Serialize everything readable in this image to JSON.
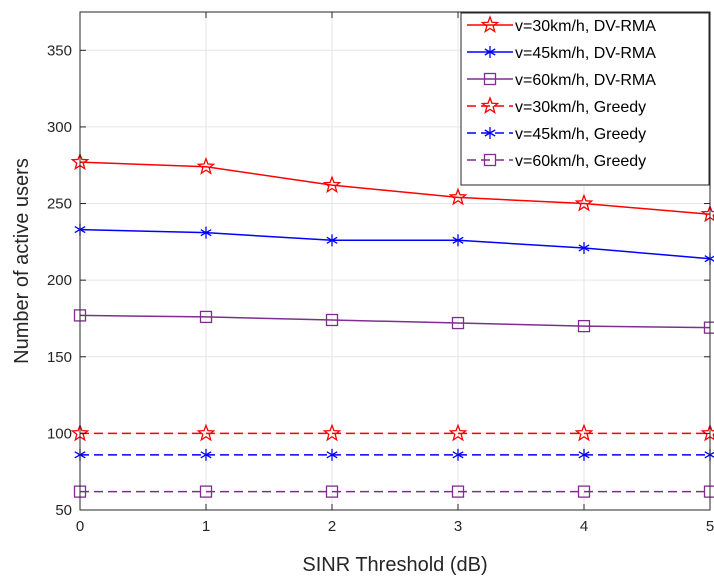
{
  "chart_data": {
    "type": "line",
    "title": "",
    "xlabel": "SINR Threshold (dB)",
    "ylabel": "Number of active users",
    "xlim": [
      0,
      5
    ],
    "ylim": [
      50,
      375
    ],
    "x_ticks": [
      "0",
      "1",
      "2",
      "3",
      "4",
      "5"
    ],
    "y_ticks": [
      "50",
      "100",
      "150",
      "200",
      "250",
      "300",
      "350"
    ],
    "grid": true,
    "legend_position": "top-right",
    "x": [
      0,
      1,
      2,
      3,
      4,
      5
    ],
    "series": [
      {
        "name": "v=30km/h, DV-RMA",
        "color": "#ff0000",
        "marker": "pentagram",
        "linestyle": "solid",
        "values": [
          277,
          274,
          262,
          254,
          250,
          243
        ]
      },
      {
        "name": "v=45km/h, DV-RMA",
        "color": "#0000ff",
        "marker": "asterisk",
        "linestyle": "solid",
        "values": [
          233,
          231,
          226,
          226,
          221,
          214
        ]
      },
      {
        "name": "v=60km/h, DV-RMA",
        "color": "#7e2f8e",
        "marker": "square",
        "linestyle": "solid",
        "values": [
          177,
          176,
          174,
          172,
          170,
          169
        ]
      },
      {
        "name": "v=30km/h, Greedy",
        "color": "#ff0000",
        "marker": "pentagram",
        "linestyle": "dashed",
        "values": [
          100,
          100,
          100,
          100,
          100,
          100
        ]
      },
      {
        "name": "v=45km/h, Greedy",
        "color": "#0000ff",
        "marker": "asterisk",
        "linestyle": "dashed",
        "values": [
          86,
          86,
          86,
          86,
          86,
          86
        ]
      },
      {
        "name": "v=60km/h, Greedy",
        "color": "#7e2f8e",
        "marker": "square",
        "linestyle": "dashed",
        "values": [
          62,
          62,
          62,
          62,
          62,
          62
        ]
      }
    ]
  }
}
